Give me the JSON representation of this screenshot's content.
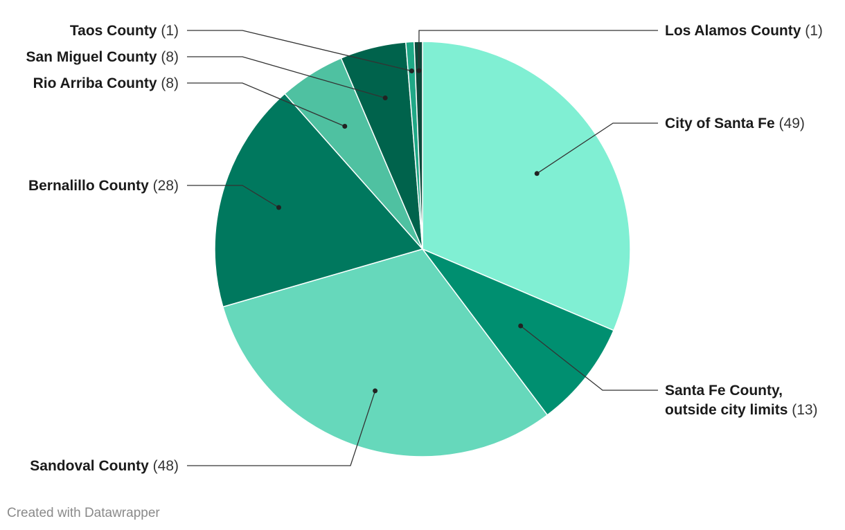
{
  "chart_data": {
    "type": "pie",
    "start_angle_deg": 0,
    "direction": "clockwise",
    "slices": [
      {
        "label": "City of Santa Fe",
        "value": 49,
        "color": "#80efd3"
      },
      {
        "label": "Santa Fe County,",
        "label_line2": "outside city limits",
        "value": 13,
        "color": "#008f70"
      },
      {
        "label": "Sandoval County",
        "value": 48,
        "color": "#66d8bb"
      },
      {
        "label": "Bernalillo County",
        "value": 28,
        "color": "#00785e"
      },
      {
        "label": "Rio Arriba County",
        "value": 8,
        "color": "#4fc1a1"
      },
      {
        "label": "San Miguel County",
        "value": 8,
        "color": "#00634c"
      },
      {
        "label": "Taos County",
        "value": 1,
        "color": "#1fa886"
      },
      {
        "label": "Los Alamos County",
        "value": 1,
        "color": "#0c4a3b"
      }
    ]
  },
  "credit": "Created with Datawrapper"
}
